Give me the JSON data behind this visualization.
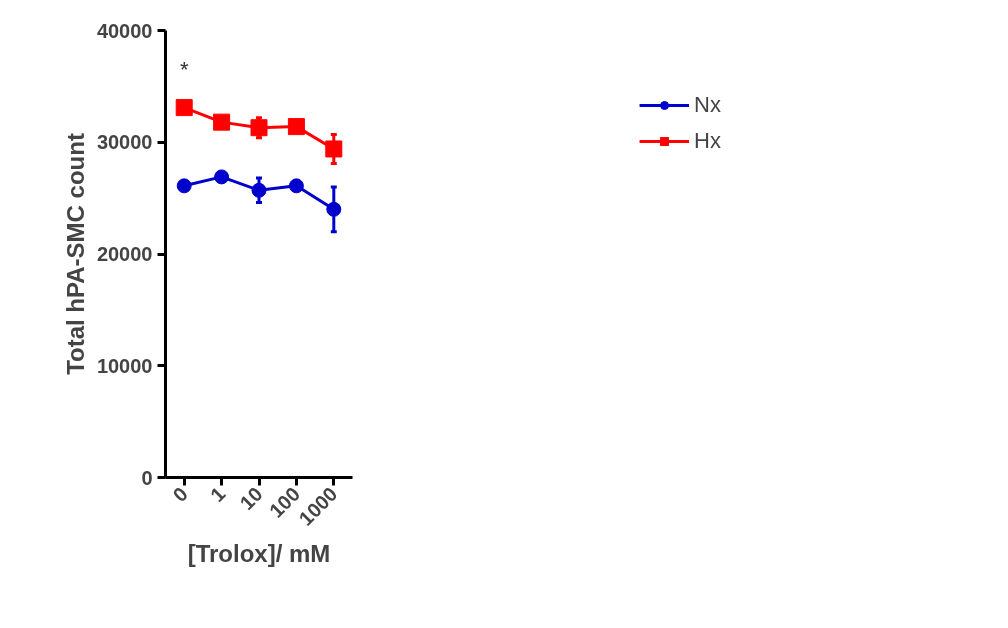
{
  "chart_data": {
    "type": "line",
    "xlabel": "[Trolox]/ mM",
    "ylabel": "Total hPA-SMC count",
    "categories": [
      "0",
      "1",
      "10",
      "100",
      "1000"
    ],
    "series": [
      {
        "name": "Nx",
        "color": "#0000cc",
        "marker": "circle",
        "values": [
          26100,
          26900,
          25700,
          26100,
          24000
        ],
        "errors": [
          300,
          300,
          1100,
          300,
          2000
        ]
      },
      {
        "name": "Hx",
        "color": "#ff0000",
        "marker": "square",
        "values": [
          33100,
          31800,
          31300,
          31400,
          29400
        ],
        "errors": [
          400,
          400,
          900,
          400,
          1300
        ]
      }
    ],
    "ylim": [
      0,
      40000
    ],
    "yticks": [
      0,
      10000,
      20000,
      30000,
      40000
    ],
    "annotations": [
      "*"
    ],
    "grid": false,
    "legend": "top right"
  }
}
